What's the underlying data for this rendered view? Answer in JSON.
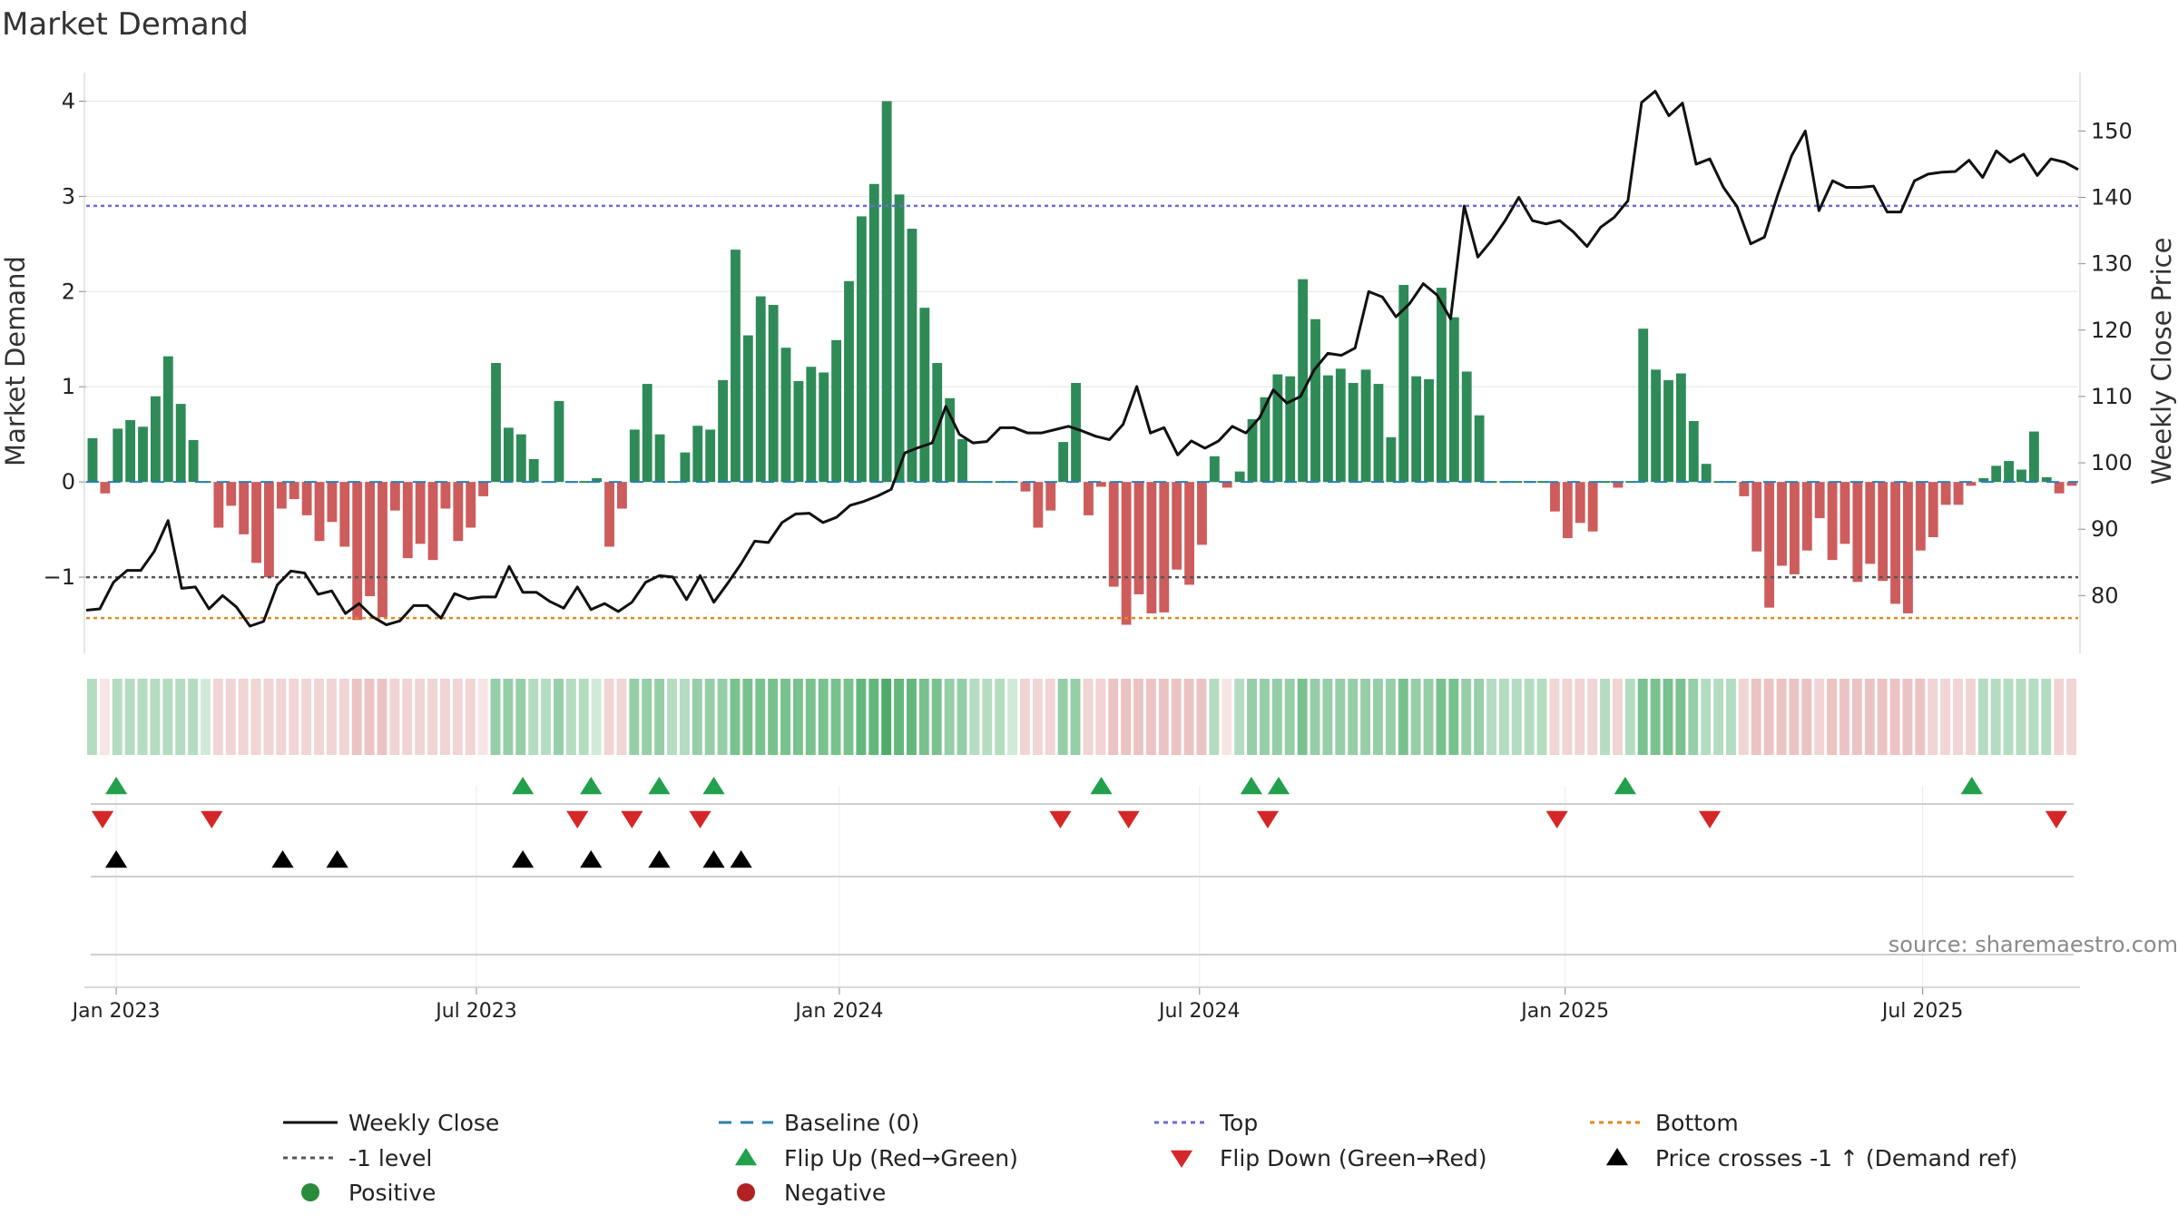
{
  "chart_data": {
    "type": "bar",
    "title": "Market Demand",
    "ylabel": "Market Demand",
    "y2label": "Weekly Close Price",
    "xlabel": "",
    "source": "source: sharemaestro.com",
    "ylim": [
      -1.8,
      4.3
    ],
    "y2lim": [
      71.3,
      158.8
    ],
    "xlim": [
      0,
      73
    ],
    "yticks": [
      -1,
      0,
      1,
      2,
      3,
      4
    ],
    "yticklabels": [
      "−1",
      "0",
      "1",
      "2",
      "3",
      "4"
    ],
    "y2ticks": [
      80,
      90,
      100,
      110,
      120,
      130,
      140,
      150
    ],
    "y2ticklabels": [
      "80",
      "90",
      "100",
      "110",
      "120",
      "130",
      "140",
      "150"
    ],
    "xticks": [
      {
        "x": 1.1,
        "label": "Jan 2023"
      },
      {
        "x": 14.3,
        "label": "Jul 2023"
      },
      {
        "x": 27.6,
        "label": "Jan 2024"
      },
      {
        "x": 40.8,
        "label": "Jul 2024"
      },
      {
        "x": 54.2,
        "label": "Jan 2025"
      },
      {
        "x": 67.3,
        "label": "Jul 2025"
      }
    ],
    "reference_lines": {
      "top": 2.9,
      "bottom": -1.43,
      "minus_one": -1,
      "baseline": 0
    },
    "series": [
      {
        "name": "Market Demand",
        "values": [
          0.46,
          -0.12,
          0.56,
          0.65,
          0.58,
          0.9,
          1.32,
          0.82,
          0.44,
          0.0,
          -0.48,
          -0.25,
          -0.55,
          -0.85,
          -1.0,
          -0.28,
          -0.18,
          -0.35,
          -0.62,
          -0.42,
          -0.68,
          -1.45,
          -1.2,
          -1.42,
          -0.3,
          -0.8,
          -0.65,
          -0.82,
          -0.28,
          -0.62,
          -0.48,
          -0.15,
          1.25,
          0.57,
          0.5,
          0.24,
          0.0,
          0.85,
          0.0,
          0.0,
          0.04,
          -0.68,
          -0.28,
          0.55,
          1.03,
          0.5,
          0.0,
          0.31,
          0.59,
          0.55,
          1.07,
          2.44,
          1.54,
          1.95,
          1.86,
          1.41,
          1.06,
          1.21,
          1.15,
          1.49,
          2.11,
          2.79,
          3.13,
          4.0,
          3.02,
          2.66,
          1.83,
          1.25,
          0.88,
          0.45,
          0.0,
          0.0,
          0.0,
          0.0,
          -0.1,
          -0.48,
          -0.3,
          0.42,
          1.04,
          -0.35,
          -0.05,
          -1.1,
          -1.5,
          -1.18,
          -1.38,
          -1.37,
          -0.92,
          -1.08,
          -0.66,
          0.27,
          -0.06,
          0.11,
          0.66,
          0.89,
          1.13,
          1.11,
          2.13,
          1.71,
          1.12,
          1.19,
          1.04,
          1.18,
          1.03,
          0.47,
          2.07,
          1.11,
          1.08,
          2.04,
          1.73,
          1.16,
          0.7,
          0.0,
          0.0,
          0.0,
          0.0,
          0.0,
          -0.31,
          -0.59,
          -0.43,
          -0.52,
          0.0,
          -0.06,
          0.0,
          1.61,
          1.18,
          1.07,
          1.14,
          0.64,
          0.19,
          0.0,
          0.0,
          -0.15,
          -0.73,
          -1.32,
          -0.88,
          -0.97,
          -0.72,
          -0.38,
          -0.82,
          -0.65,
          -1.05,
          -0.86,
          -1.04,
          -1.28,
          -1.38,
          -0.72,
          -0.58,
          -0.24,
          -0.24,
          -0.04,
          0.04,
          0.17,
          0.22,
          0.13,
          0.53,
          0.05,
          -0.12,
          -0.04
        ]
      },
      {
        "name": "Weekly Close",
        "x": [
          0.0,
          0.5,
          1.0,
          1.5,
          2.0,
          2.5,
          3.0,
          3.5,
          4.0,
          4.5,
          5.0,
          5.5,
          6.0,
          6.5,
          7.0,
          7.5,
          8.0,
          8.5,
          9.0,
          9.5,
          10.0,
          10.5,
          11.0,
          11.5,
          12.0,
          12.5,
          13.0,
          13.5,
          14.0,
          14.5,
          15.0,
          15.5,
          16.0,
          16.5,
          17.0,
          17.5,
          18.0,
          18.5,
          19.0,
          19.5,
          20.0,
          20.5,
          21.0,
          21.5,
          22.0,
          22.5,
          23.0,
          23.5,
          24.0,
          24.5,
          25.0,
          25.5,
          26.0,
          26.5,
          27.0,
          27.5,
          28.0,
          28.5,
          29.0,
          29.5,
          30.0,
          30.5,
          31.0,
          31.5,
          32.0,
          32.5,
          33.0,
          33.5,
          34.0,
          34.5,
          35.0,
          35.5,
          36.0,
          36.5,
          37.0,
          37.5,
          38.0,
          38.5,
          39.0,
          39.5,
          40.0,
          40.5,
          41.0,
          41.5,
          42.0,
          42.5,
          43.0,
          43.5,
          44.0,
          44.5,
          45.0,
          45.5,
          46.0,
          46.5,
          47.0,
          47.5,
          48.0,
          48.5,
          49.0,
          49.5,
          50.0,
          50.5,
          51.0,
          51.5,
          52.0,
          52.5,
          53.0,
          53.5,
          54.0,
          54.5,
          55.0,
          55.5,
          56.0,
          56.5,
          57.0,
          57.5,
          58.0,
          58.5,
          59.0,
          59.5,
          60.0,
          60.5,
          61.0,
          61.5,
          62.0,
          62.5,
          63.0,
          63.5,
          64.0,
          64.5,
          65.0,
          65.5,
          66.0,
          66.5,
          67.0,
          67.5,
          68.0,
          68.5,
          69.0,
          69.5,
          70.0,
          70.5,
          71.0,
          71.5,
          72.0,
          72.5,
          73.0
        ],
        "values": [
          77.8,
          78.0,
          82.0,
          83.8,
          83.8,
          86.7,
          91.3,
          81.1,
          81.3,
          78.0,
          80.0,
          78.3,
          75.4,
          76.1,
          81.6,
          83.7,
          83.4,
          80.2,
          80.7,
          77.3,
          78.8,
          76.8,
          75.6,
          76.2,
          78.5,
          78.5,
          76.6,
          80.3,
          79.5,
          79.8,
          79.8,
          84.4,
          80.5,
          80.5,
          79.1,
          78.1,
          81.3,
          77.9,
          78.8,
          77.6,
          79.0,
          82.0,
          83.0,
          82.8,
          79.4,
          83.0,
          79.0,
          81.8,
          84.8,
          88.2,
          88.0,
          91.0,
          92.3,
          92.4,
          91.0,
          91.8,
          93.6,
          94.2,
          95.0,
          96.0,
          101.5,
          102.3,
          103.0,
          108.5,
          104.3,
          103.0,
          103.2,
          105.3,
          105.3,
          104.5,
          104.5,
          105.0,
          105.5,
          104.8,
          104.0,
          103.5,
          105.8,
          111.5,
          104.5,
          105.3,
          101.2,
          103.3,
          102.2,
          103.3,
          105.5,
          104.5,
          106.8,
          111.0,
          109.0,
          110.0,
          114.0,
          116.5,
          116.2,
          117.3,
          125.8,
          125.0,
          122.0,
          124.0,
          127.0,
          125.3,
          121.7,
          138.7,
          131.0,
          133.5,
          136.5,
          140.0,
          136.5,
          136.0,
          136.5,
          134.8,
          132.6,
          135.5,
          137.0,
          139.5,
          154.3,
          156.0,
          152.3,
          154.2,
          145.0,
          145.8,
          141.5,
          138.6,
          133.0,
          134.0,
          140.5,
          146.3,
          150.0,
          138.0,
          142.5,
          141.5,
          141.5,
          141.7,
          137.8,
          137.8,
          142.5,
          143.5,
          143.8,
          143.9,
          145.6,
          143.0,
          147.0,
          145.3,
          146.5,
          143.3,
          145.8,
          145.3,
          144.2
        ]
      }
    ],
    "heat_strip": {
      "name": "Demand state",
      "levels": [
        0.3,
        0.1,
        0.3,
        0.3,
        0.3,
        0.3,
        0.3,
        0.3,
        0.3,
        0.1,
        0.3,
        0.3,
        0.3,
        0.3,
        0.3,
        0.3,
        0.3,
        0.3,
        0.3,
        0.3,
        0.3,
        0.5,
        0.5,
        0.5,
        0.3,
        0.3,
        0.3,
        0.3,
        0.3,
        0.3,
        0.3,
        0.1,
        0.5,
        0.5,
        0.5,
        0.3,
        0.3,
        0.5,
        0.3,
        0.3,
        0.1,
        0.3,
        0.3,
        0.5,
        0.5,
        0.5,
        0.3,
        0.3,
        0.5,
        0.5,
        0.5,
        0.7,
        0.7,
        0.7,
        0.7,
        0.7,
        0.7,
        0.7,
        0.7,
        0.7,
        0.7,
        0.85,
        0.85,
        1.0,
        0.85,
        0.85,
        0.7,
        0.7,
        0.5,
        0.5,
        0.3,
        0.3,
        0.3,
        0.1,
        0.3,
        0.3,
        0.3,
        0.5,
        0.5,
        0.3,
        0.3,
        0.5,
        0.5,
        0.5,
        0.5,
        0.5,
        0.5,
        0.5,
        0.5,
        0.3,
        0.1,
        0.3,
        0.5,
        0.5,
        0.5,
        0.5,
        0.7,
        0.5,
        0.5,
        0.5,
        0.5,
        0.5,
        0.5,
        0.5,
        0.7,
        0.5,
        0.5,
        0.7,
        0.7,
        0.5,
        0.5,
        0.3,
        0.3,
        0.3,
        0.3,
        0.3,
        0.3,
        0.3,
        0.3,
        0.3,
        0.3,
        0.3,
        0.3,
        0.7,
        0.7,
        0.7,
        0.7,
        0.5,
        0.3,
        0.3,
        0.3,
        0.3,
        0.5,
        0.5,
        0.5,
        0.5,
        0.5,
        0.3,
        0.5,
        0.5,
        0.5,
        0.5,
        0.5,
        0.5,
        0.5,
        0.5,
        0.3,
        0.3,
        0.3,
        0.3,
        0.3,
        0.3,
        0.3,
        0.3,
        0.3,
        0.3,
        0.3,
        0.3
      ]
    },
    "flip_up": [
      1.1,
      16.0,
      18.5,
      21.0,
      23.0,
      37.2,
      42.7,
      43.7,
      56.4,
      69.1
    ],
    "flip_down": [
      0.6,
      4.6,
      18.0,
      20.0,
      22.5,
      35.7,
      38.2,
      43.3,
      53.9,
      59.5,
      72.2
    ],
    "price_cross": [
      1.1,
      7.2,
      9.2,
      16.0,
      18.5,
      21.0,
      23.0,
      24.0
    ],
    "legend": [
      {
        "label": "Weekly Close",
        "symbol": "line",
        "color": "#111111"
      },
      {
        "label": "Baseline (0)",
        "symbol": "dash",
        "color": "#2b7fb8"
      },
      {
        "label": "Top",
        "symbol": "dot",
        "color": "#6b6bd6"
      },
      {
        "label": "Bottom",
        "symbol": "dot",
        "color": "#e08a1e"
      },
      {
        "label": "-1 level",
        "symbol": "dot",
        "color": "#555555"
      },
      {
        "label": "Flip Up (Red→Green)",
        "symbol": "tri-up",
        "color": "#22a04b"
      },
      {
        "label": "Flip Down (Green→Red)",
        "symbol": "tri-down",
        "color": "#d62728"
      },
      {
        "label": "Price crosses -1 ↑ (Demand ref)",
        "symbol": "tri-up",
        "color": "#000000"
      },
      {
        "label": "Positive",
        "symbol": "circle",
        "color": "#2a8b3a"
      },
      {
        "label": "Negative",
        "symbol": "circle",
        "color": "#b22222"
      }
    ],
    "colors": {
      "positive_bar": "#2e8b57",
      "negative_bar": "#cd5c5c",
      "line": "#111111",
      "baseline": "#2b7fb8",
      "top": "#6b6bd6",
      "bottom": "#e08a1e",
      "minus_one": "#555555",
      "heat_positive": "#2e9e4f",
      "heat_negative": "#d98888",
      "grid": "#e6e6e6",
      "axis": "#cccccc",
      "text": "#222222",
      "source_text": "#8a8a8a"
    }
  }
}
